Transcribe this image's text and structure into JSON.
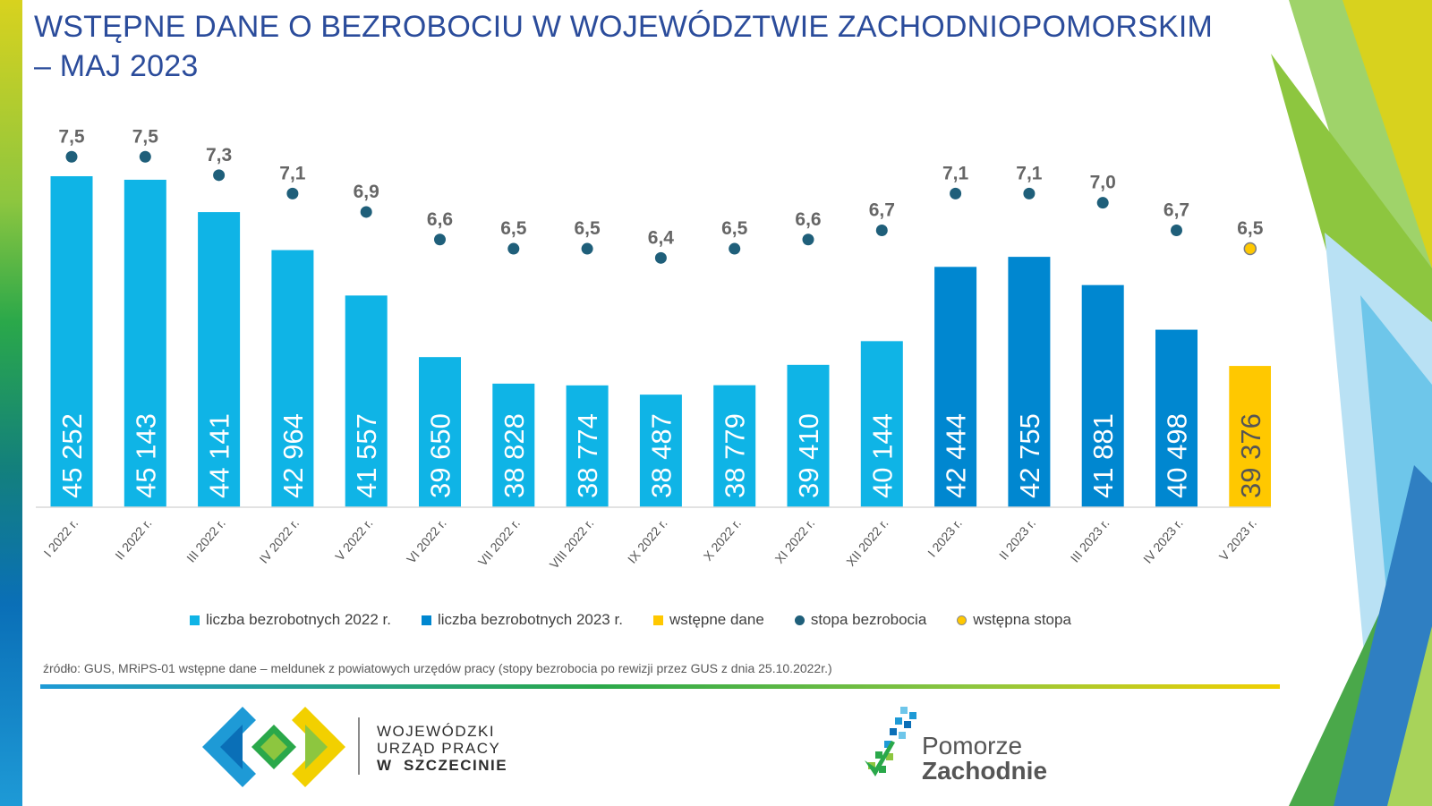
{
  "title": {
    "line1": "WSTĘPNE DANE O BEZROBOCIU W WOJEWÓDZTWIE ZACHODNIOPOMORSKIM",
    "line2": "– MAJ 2023"
  },
  "chart_data": {
    "type": "bar",
    "categories": [
      "I 2022 r.",
      "II 2022 r.",
      "III 2022 r.",
      "IV 2022 r.",
      "V 2022 r.",
      "VI 2022 r.",
      "VII 2022 r.",
      "VIII 2022 r.",
      "IX 2022 r.",
      "X 2022 r.",
      "XI 2022 r.",
      "XII 2022 r.",
      "I 2023 r.",
      "II 2023 r.",
      "III 2023 r.",
      "IV 2023 r.",
      "V 2023 r."
    ],
    "values": [
      45252,
      45143,
      44141,
      42964,
      41557,
      39650,
      38828,
      38774,
      38487,
      38779,
      39410,
      40144,
      42444,
      42755,
      41881,
      40498,
      39376
    ],
    "value_labels": [
      "45 252",
      "45 143",
      "44 141",
      "42 964",
      "41 557",
      "39 650",
      "38 828",
      "38 774",
      "38 487",
      "38 779",
      "39 410",
      "40 144",
      "42 444",
      "42 755",
      "41 881",
      "40 498",
      "39 376"
    ],
    "bar_series": [
      "2022",
      "2022",
      "2022",
      "2022",
      "2022",
      "2022",
      "2022",
      "2022",
      "2022",
      "2022",
      "2022",
      "2022",
      "2023",
      "2023",
      "2023",
      "2023",
      "prelim"
    ],
    "unemployment_rate": [
      7.5,
      7.5,
      7.3,
      7.1,
      6.9,
      6.6,
      6.5,
      6.5,
      6.4,
      6.5,
      6.6,
      6.7,
      7.1,
      7.1,
      7.0,
      6.7,
      6.5
    ],
    "rate_labels": [
      "7,5",
      "7,5",
      "7,3",
      "7,1",
      "6,9",
      "6,6",
      "6,5",
      "6,5",
      "6,4",
      "6,5",
      "6,6",
      "6,7",
      "7,1",
      "7,1",
      "7,0",
      "6,7",
      "6,5"
    ],
    "rate_series": [
      "final",
      "final",
      "final",
      "final",
      "final",
      "final",
      "final",
      "final",
      "final",
      "final",
      "final",
      "final",
      "final",
      "final",
      "final",
      "final",
      "prelim"
    ],
    "ylim": [
      35000,
      46000
    ],
    "rate_ylim": [
      4.0,
      7.6
    ],
    "legend": [
      {
        "label": "liczba bezrobotnych 2022 r.",
        "shape": "square",
        "color": "#0fb4e6"
      },
      {
        "label": "liczba bezrobotnych 2023 r.",
        "shape": "square",
        "color": "#0087d0"
      },
      {
        "label": "wstępne dane",
        "shape": "square",
        "color": "#ffc800"
      },
      {
        "label": "stopa bezrobocia",
        "shape": "dot",
        "color": "#1f5f7a"
      },
      {
        "label": "wstępna stopa",
        "shape": "dot",
        "color": "#ffc800"
      }
    ],
    "legend_position": "bottom",
    "grid": false,
    "colors": {
      "bar_2022": "#0fb4e6",
      "bar_2023": "#0087d0",
      "bar_prelim": "#ffc800",
      "rate_dot": "#1f5f7a",
      "rate_dot_prelim": "#ffc800"
    }
  },
  "source": "źródło: GUS, MRiPS-01 wstępne dane – meldunek z powiatowych urzędów pracy (stopy bezrobocia po rewizji przez GUS z dnia 25.10.2022r.)",
  "logos": {
    "wup": {
      "line1": "WOJEWÓDZKI",
      "line2": "URZĄD PRACY",
      "line3_w": "W",
      "line3_city": "SZCZECINIE"
    },
    "pz": {
      "line1": "Pomorze",
      "line2": "Zachodnie"
    }
  }
}
